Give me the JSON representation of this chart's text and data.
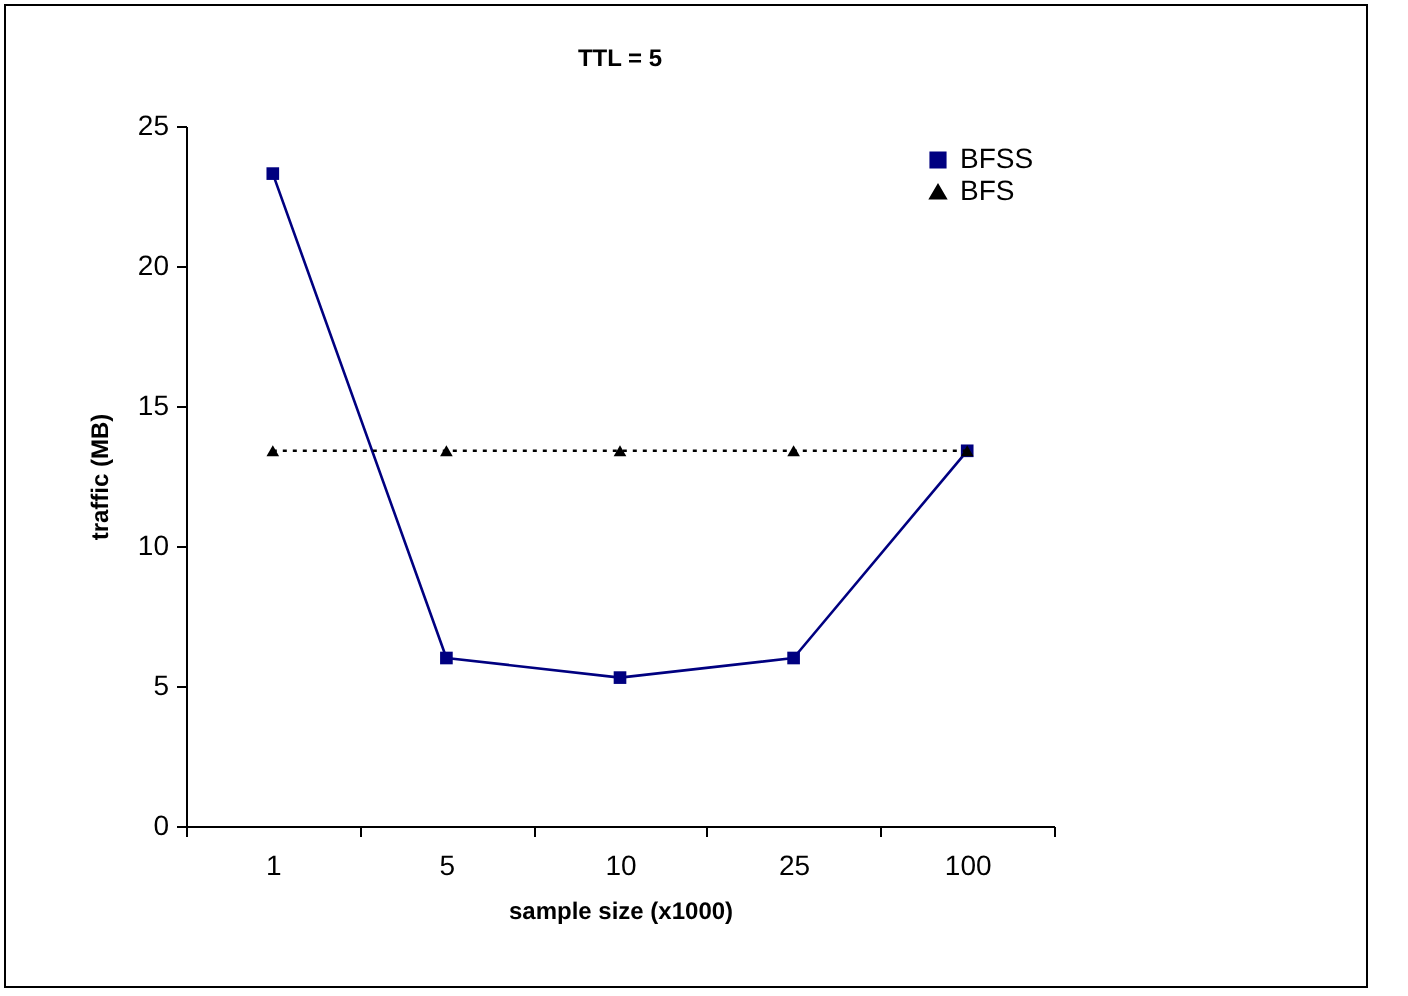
{
  "chart_data": {
    "type": "line",
    "title": "TTL = 5",
    "xlabel": "sample size (x1000)",
    "ylabel": "traffic (MB)",
    "categories": [
      "1",
      "5",
      "10",
      "25",
      "100"
    ],
    "series": [
      {
        "name": "BFSS",
        "color": "#000080",
        "values": [
          23.3,
          6.0,
          5.3,
          6.0,
          13.4
        ],
        "marker": "square",
        "line_style": "solid"
      },
      {
        "name": "BFS",
        "color": "#000000",
        "values": [
          13.4,
          13.4,
          13.4,
          13.4,
          13.4
        ],
        "marker": "triangle",
        "line_style": "dotted"
      }
    ],
    "ylim": [
      0,
      25
    ],
    "yticks": [
      0,
      5,
      10,
      15,
      20,
      25
    ],
    "grid": false,
    "legend": "top right"
  }
}
